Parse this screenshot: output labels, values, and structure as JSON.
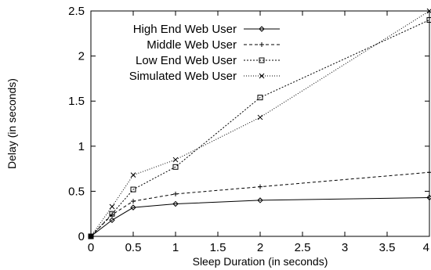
{
  "chart_data": {
    "type": "line",
    "title": "",
    "xlabel": "Sleep Duration (in seconds)",
    "ylabel": "Delay (in seconds)",
    "xlim": [
      0,
      4
    ],
    "ylim": [
      0,
      2.5
    ],
    "xticks": [
      "0",
      "0.5",
      "1",
      "1.5",
      "2",
      "2.5",
      "3",
      "3.5",
      "4"
    ],
    "yticks": [
      "0",
      "0.5",
      "1",
      "1.5",
      "2",
      "2.5"
    ],
    "grid": false,
    "legend_position": "top-left",
    "series": [
      {
        "name": "High End Web User",
        "line_style": "solid",
        "marker": "diamond",
        "x": [
          0,
          0.25,
          0.5,
          1,
          2,
          4
        ],
        "y": [
          0.0,
          0.18,
          0.32,
          0.36,
          0.4,
          0.43
        ]
      },
      {
        "name": "Middle Web User",
        "line_style": "dashed",
        "marker": "plus",
        "x": [
          0,
          0.25,
          0.5,
          1,
          2,
          4
        ],
        "y": [
          0.0,
          0.24,
          0.39,
          0.47,
          0.55,
          0.71
        ]
      },
      {
        "name": "Low End Web User",
        "line_style": "dotted",
        "marker": "square",
        "x": [
          0,
          0.25,
          0.5,
          1,
          2,
          4
        ],
        "y": [
          0.0,
          0.25,
          0.52,
          0.77,
          1.54,
          2.4
        ]
      },
      {
        "name": "Simulated Web User",
        "line_style": "dotted-fine",
        "marker": "x",
        "x": [
          0,
          0.25,
          0.5,
          1,
          2,
          4
        ],
        "y": [
          0.0,
          0.33,
          0.68,
          0.85,
          1.32,
          2.5
        ]
      }
    ]
  }
}
